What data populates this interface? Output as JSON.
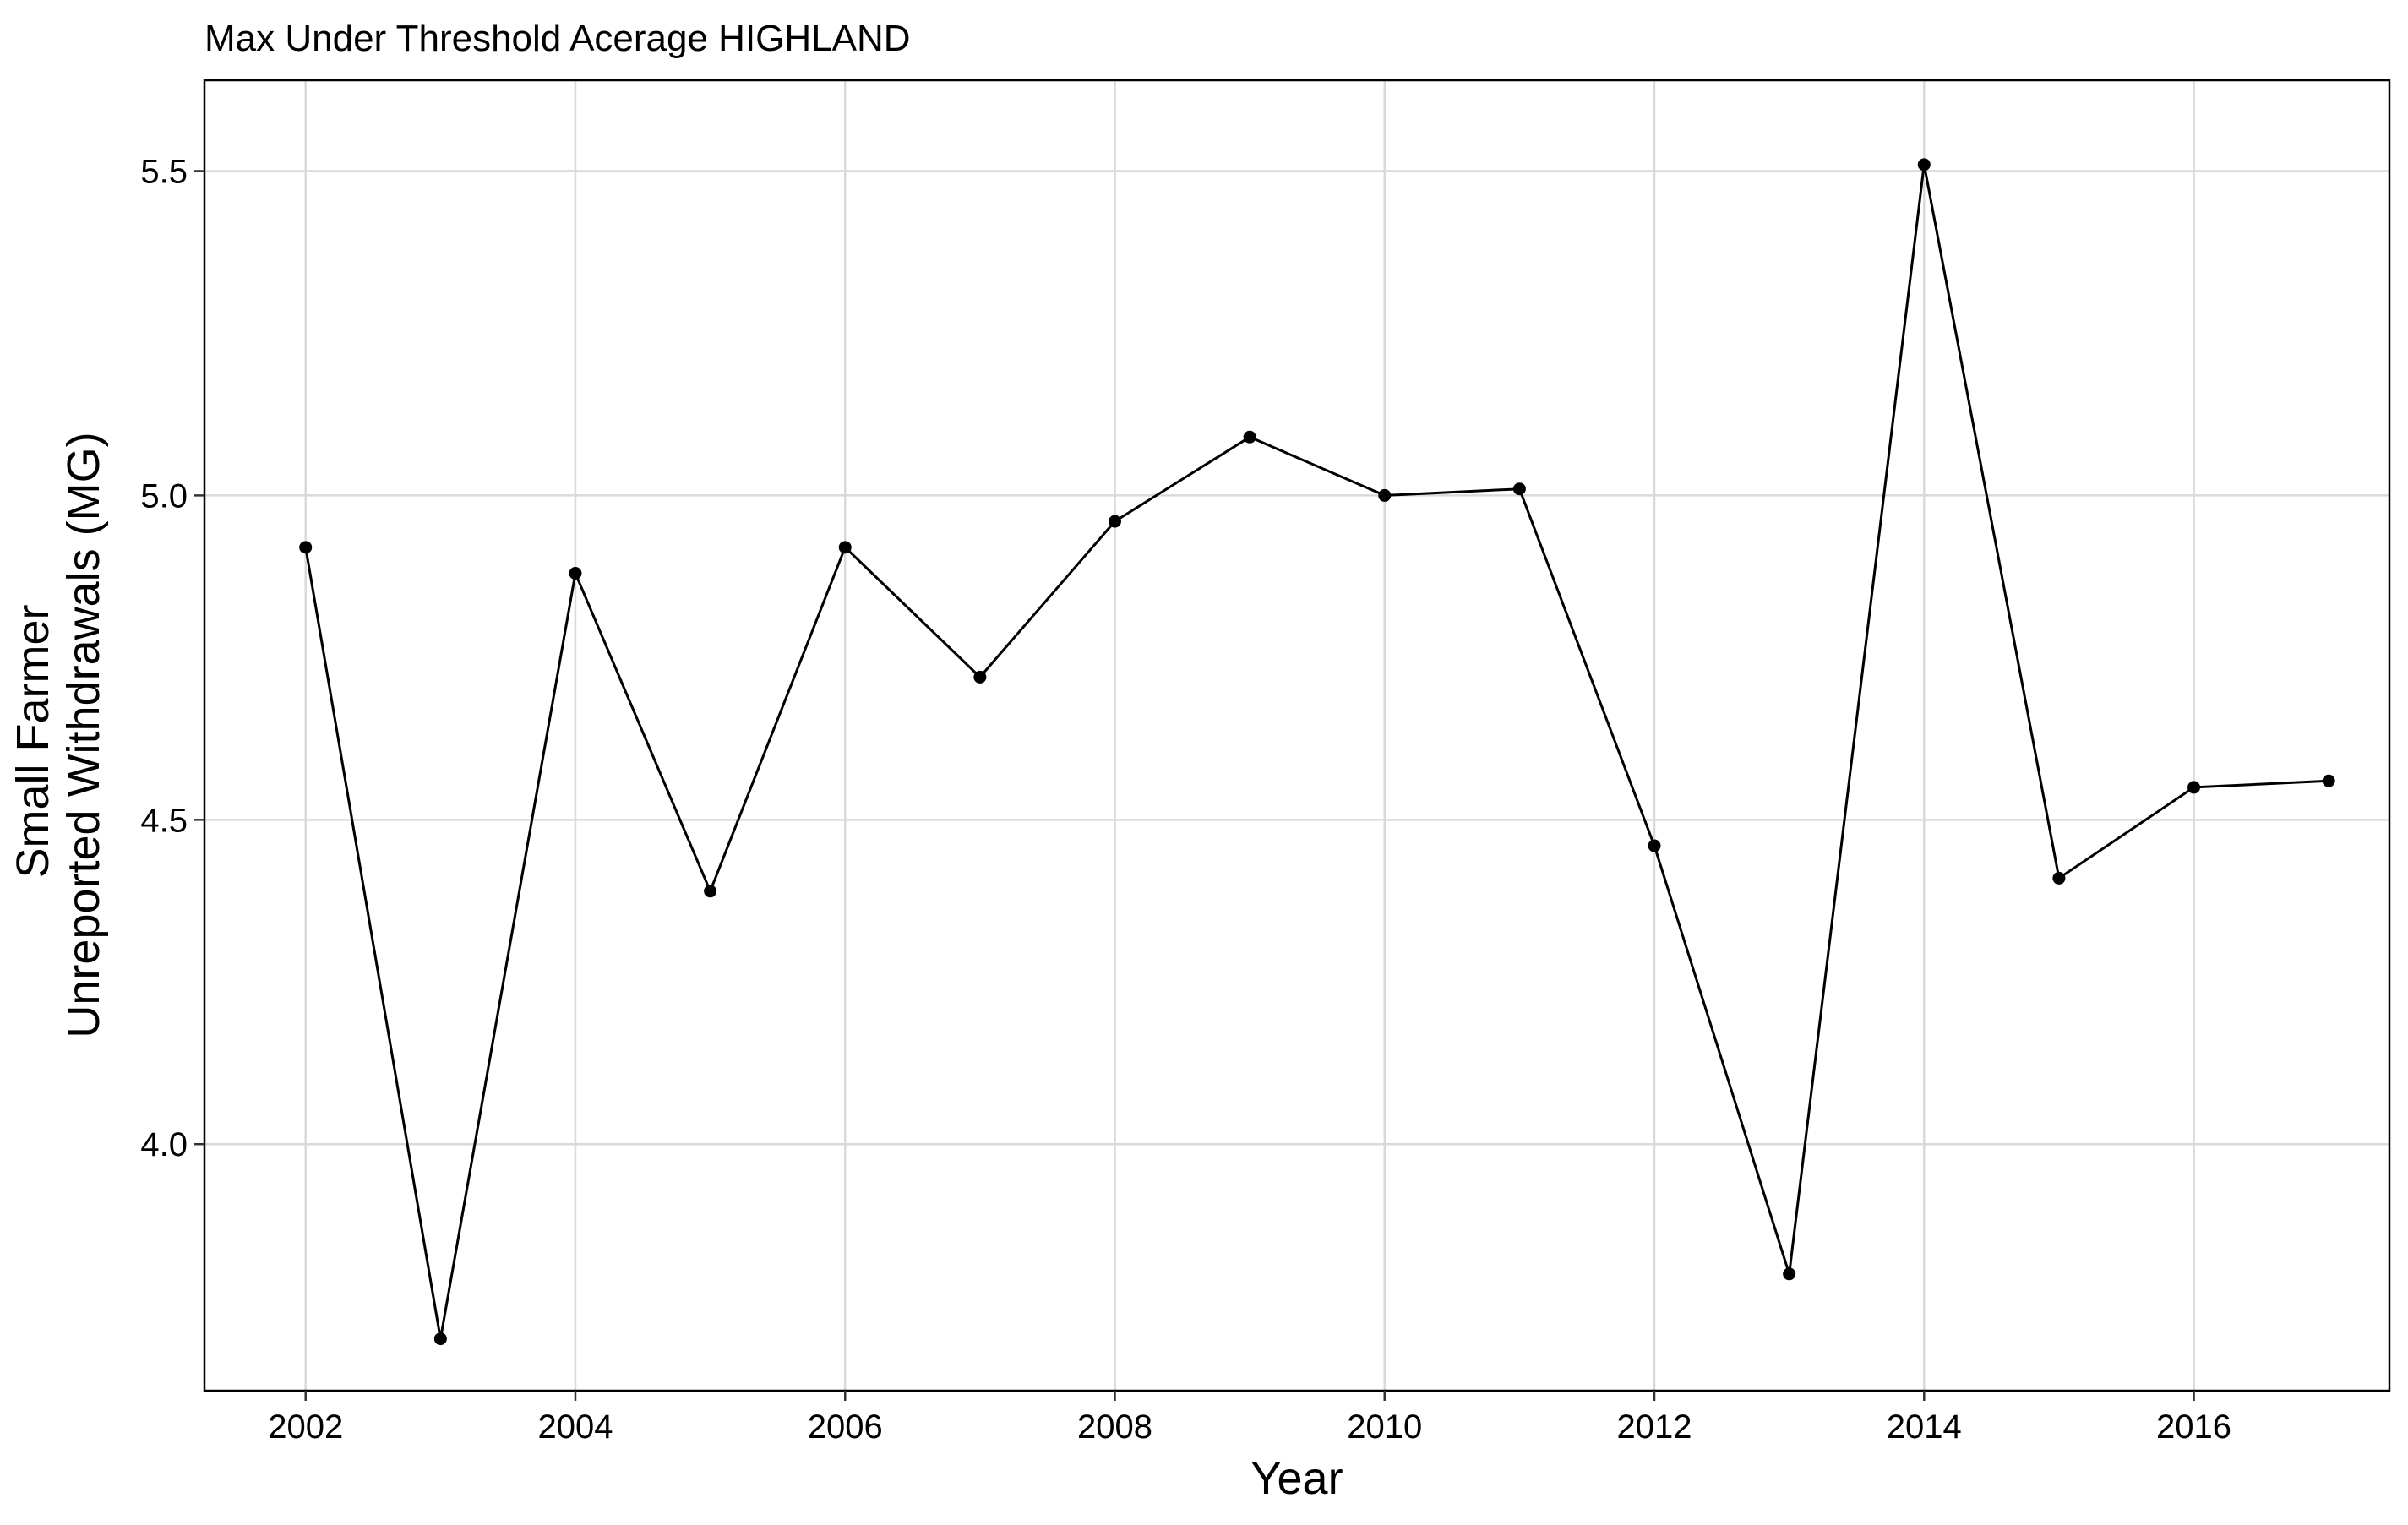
{
  "chart_data": {
    "type": "line",
    "title": "Max Under Threshold Acerage HIGHLAND",
    "xlabel": "Year",
    "ylabel_lines": [
      "Small Farmer",
      "Unreported Withdrawals (MG)"
    ],
    "xlim": [
      2001.25,
      2017.45
    ],
    "ylim": [
      3.62,
      5.64
    ],
    "x_ticks": [
      2002,
      2004,
      2006,
      2008,
      2010,
      2012,
      2014,
      2016
    ],
    "x_tick_labels": [
      "2002",
      "2004",
      "2006",
      "2008",
      "2010",
      "2012",
      "2014",
      "2016"
    ],
    "y_ticks": [
      4.0,
      4.5,
      5.0,
      5.5
    ],
    "y_tick_labels": [
      "4.0",
      "4.5",
      "5.0",
      "5.5"
    ],
    "grid": true,
    "series": [
      {
        "x": [
          2002.0,
          2003.0,
          2004.0,
          2005.0,
          2006.0,
          2007.0,
          2008.0,
          2009.0,
          2010.0,
          2011.0,
          2012.0,
          2013.0,
          2014.0,
          2015.0,
          2016.0,
          2017.0
        ],
        "values": [
          4.92,
          3.7,
          4.88,
          4.39,
          4.92,
          4.72,
          4.96,
          5.09,
          5.0,
          5.01,
          4.46,
          3.8,
          5.51,
          4.41,
          4.55,
          4.56
        ]
      }
    ],
    "colors": {
      "line": "#000000",
      "grid": "#d9d9d9",
      "panel_border": "#000000",
      "background": "#ffffff"
    }
  }
}
